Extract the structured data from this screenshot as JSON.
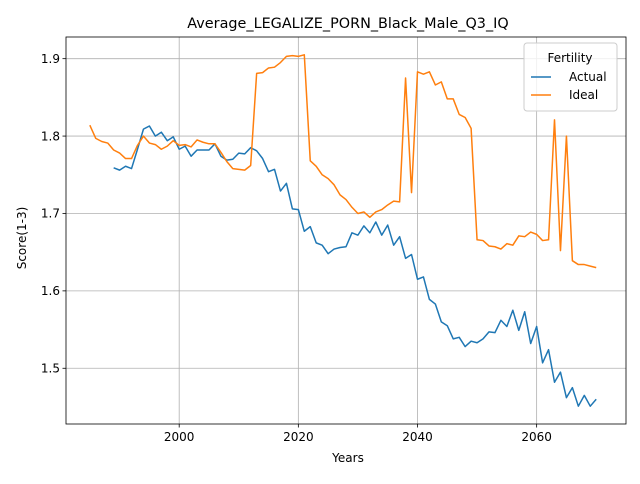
{
  "chart_data": {
    "type": "line",
    "title": "Average_LEGALIZE_PORN_Black_Male_Q3_IQ",
    "xlabel": "Years",
    "ylabel": "Score(1-3)",
    "xlim": [
      1981,
      2075
    ],
    "ylim": [
      1.428,
      1.928
    ],
    "xticks": [
      2000,
      2020,
      2040,
      2060
    ],
    "yticks": [
      1.5,
      1.6,
      1.7,
      1.8,
      1.9
    ],
    "grid": true,
    "legend": {
      "title": "Fertility",
      "placement": "top-right"
    },
    "series": [
      {
        "name": "Actual",
        "color": "#1f77b4",
        "x": [
          1989,
          1990,
          1991,
          1992,
          1993,
          1994,
          1995,
          1996,
          1997,
          1998,
          1999,
          2000,
          2001,
          2002,
          2003,
          2004,
          2005,
          2006,
          2007,
          2008,
          2009,
          2010,
          2011,
          2012,
          2013,
          2014,
          2015,
          2016,
          2017,
          2018,
          2019,
          2020,
          2021,
          2022,
          2023,
          2024,
          2025,
          2026,
          2027,
          2028,
          2029,
          2030,
          2031,
          2032,
          2033,
          2034,
          2035,
          2036,
          2037,
          2038,
          2039,
          2040,
          2041,
          2042,
          2043,
          2044,
          2045,
          2046,
          2047,
          2048,
          2049,
          2050,
          2051,
          2052,
          2053,
          2054,
          2055,
          2056,
          2057,
          2058,
          2059,
          2060,
          2061,
          2062,
          2063,
          2064,
          2065,
          2066,
          2067,
          2068,
          2069,
          2070
        ],
        "values": [
          1.759,
          1.756,
          1.761,
          1.758,
          1.783,
          1.809,
          1.813,
          1.8,
          1.805,
          1.794,
          1.799,
          1.783,
          1.787,
          1.774,
          1.782,
          1.782,
          1.782,
          1.79,
          1.774,
          1.769,
          1.77,
          1.778,
          1.777,
          1.785,
          1.781,
          1.771,
          1.754,
          1.757,
          1.729,
          1.739,
          1.706,
          1.705,
          1.677,
          1.683,
          1.662,
          1.659,
          1.648,
          1.654,
          1.656,
          1.657,
          1.675,
          1.672,
          1.684,
          1.675,
          1.689,
          1.672,
          1.685,
          1.659,
          1.67,
          1.642,
          1.647,
          1.615,
          1.618,
          1.589,
          1.583,
          1.56,
          1.555,
          1.538,
          1.54,
          1.528,
          1.535,
          1.533,
          1.538,
          1.547,
          1.546,
          1.562,
          1.554,
          1.575,
          1.549,
          1.573,
          1.532,
          1.554,
          1.507,
          1.524,
          1.482,
          1.495,
          1.462,
          1.475,
          1.451,
          1.465,
          1.451,
          1.46
        ]
      },
      {
        "name": "Ideal",
        "color": "#ff7f0e",
        "x": [
          1985,
          1986,
          1987,
          1988,
          1989,
          1990,
          1991,
          1992,
          1993,
          1994,
          1995,
          1996,
          1997,
          1998,
          1999,
          2000,
          2001,
          2002,
          2003,
          2004,
          2005,
          2006,
          2007,
          2008,
          2009,
          2010,
          2011,
          2012,
          2013,
          2014,
          2015,
          2016,
          2017,
          2018,
          2019,
          2020,
          2021,
          2022,
          2023,
          2024,
          2025,
          2026,
          2027,
          2028,
          2029,
          2030,
          2031,
          2032,
          2033,
          2034,
          2035,
          2036,
          2037,
          2038,
          2039,
          2040,
          2041,
          2042,
          2043,
          2044,
          2045,
          2046,
          2047,
          2048,
          2049,
          2050,
          2051,
          2052,
          2053,
          2054,
          2055,
          2056,
          2057,
          2058,
          2059,
          2060,
          2061,
          2062,
          2063,
          2064,
          2065,
          2066,
          2067,
          2068,
          2069,
          2070
        ],
        "values": [
          1.814,
          1.797,
          1.793,
          1.791,
          1.782,
          1.778,
          1.771,
          1.771,
          1.788,
          1.8,
          1.791,
          1.789,
          1.783,
          1.787,
          1.794,
          1.788,
          1.789,
          1.786,
          1.795,
          1.792,
          1.79,
          1.79,
          1.779,
          1.767,
          1.758,
          1.757,
          1.756,
          1.762,
          1.881,
          1.882,
          1.888,
          1.889,
          1.895,
          1.903,
          1.904,
          1.903,
          1.905,
          1.768,
          1.761,
          1.75,
          1.745,
          1.737,
          1.724,
          1.718,
          1.708,
          1.7,
          1.702,
          1.695,
          1.702,
          1.705,
          1.711,
          1.716,
          1.715,
          1.875,
          1.727,
          1.883,
          1.88,
          1.883,
          1.866,
          1.87,
          1.848,
          1.848,
          1.828,
          1.824,
          1.81,
          1.666,
          1.665,
          1.658,
          1.657,
          1.654,
          1.661,
          1.659,
          1.671,
          1.67,
          1.676,
          1.673,
          1.665,
          1.666,
          1.821,
          1.652,
          1.8,
          1.639,
          1.634,
          1.634,
          1.632,
          1.63
        ]
      }
    ]
  }
}
